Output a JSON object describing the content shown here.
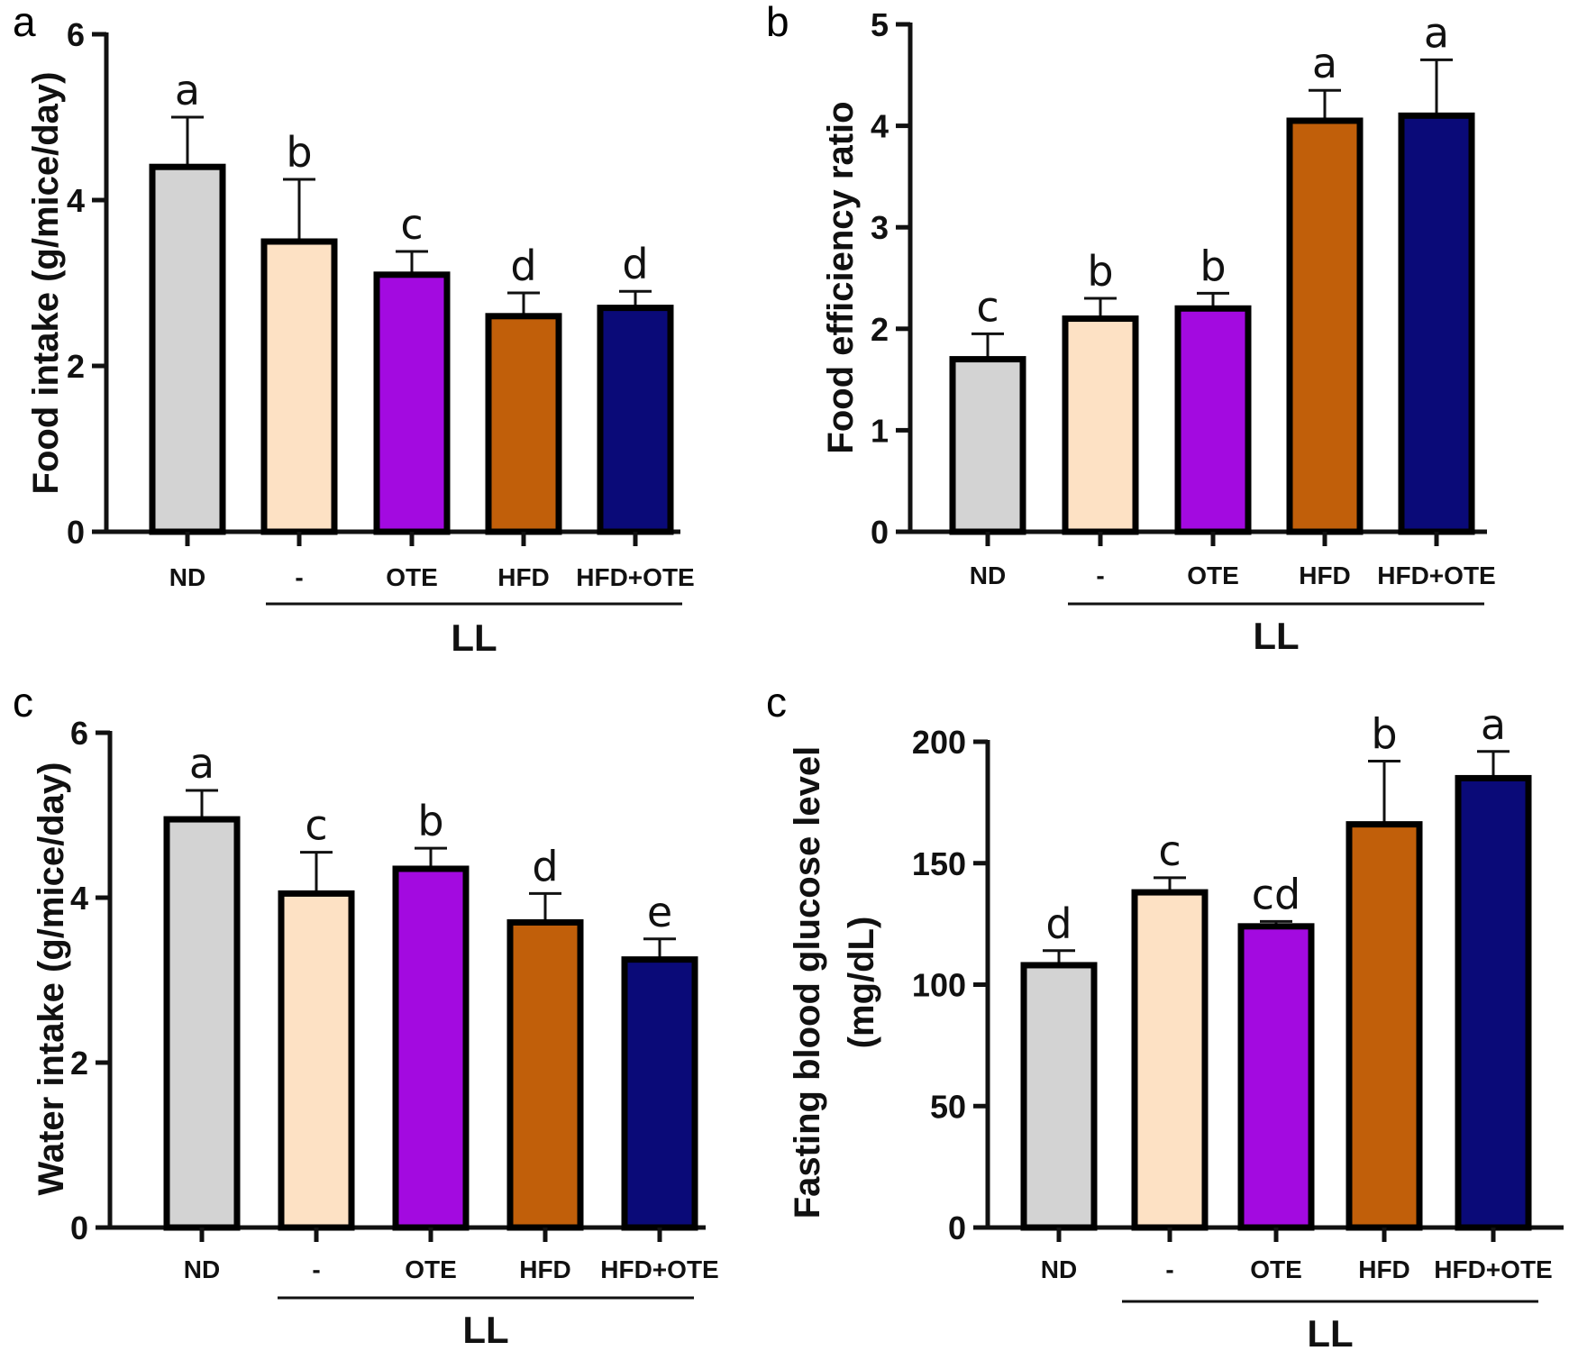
{
  "colors": {
    "ND": "#d3d3d3",
    "LL": "#fde1c4",
    "OTE": "#a30ae0",
    "HFD": "#c15f0a",
    "HFD+OTE": "#0a0a78"
  },
  "chart_data": [
    {
      "panel": "a",
      "type": "bar",
      "categories": [
        "ND",
        "-",
        "OTE",
        "HFD",
        "HFD+OTE"
      ],
      "values": [
        4.4,
        3.5,
        3.1,
        2.6,
        2.7
      ],
      "errors": [
        0.6,
        0.75,
        0.28,
        0.28,
        0.2
      ],
      "significance": [
        "a",
        "b",
        "c",
        "d",
        "d"
      ],
      "ylabel": "Food intake (g/mice/day)",
      "ylim": [
        0,
        6
      ],
      "yticks": [
        0,
        2,
        4,
        6
      ],
      "group_label": "LL"
    },
    {
      "panel": "b",
      "type": "bar",
      "categories": [
        "ND",
        "-",
        "OTE",
        "HFD",
        "HFD+OTE"
      ],
      "values": [
        1.7,
        2.1,
        2.2,
        4.05,
        4.1
      ],
      "errors": [
        0.25,
        0.2,
        0.15,
        0.3,
        0.55
      ],
      "significance": [
        "c",
        "b",
        "b",
        "a",
        "a"
      ],
      "ylabel": "Food efficiency ratio",
      "ylim": [
        0,
        5
      ],
      "yticks": [
        0,
        1,
        2,
        3,
        4,
        5
      ],
      "group_label": "LL"
    },
    {
      "panel": "c",
      "type": "bar",
      "categories": [
        "ND",
        "-",
        "OTE",
        "HFD",
        "HFD+OTE"
      ],
      "values": [
        4.95,
        4.05,
        4.35,
        3.7,
        3.25
      ],
      "errors": [
        0.35,
        0.5,
        0.25,
        0.35,
        0.25
      ],
      "significance": [
        "a",
        "c",
        "b",
        "d",
        "e"
      ],
      "ylabel": "Water intake (g/mice/day)",
      "ylim": [
        0,
        6
      ],
      "yticks": [
        0,
        2,
        4,
        6
      ],
      "group_label": "LL"
    },
    {
      "panel": "c",
      "type": "bar",
      "categories": [
        "ND",
        "-",
        "OTE",
        "HFD",
        "HFD+OTE"
      ],
      "values": [
        108,
        138,
        124,
        166,
        185
      ],
      "errors": [
        6,
        6,
        2,
        26,
        11
      ],
      "significance": [
        "d",
        "c",
        "cd",
        "b",
        "a"
      ],
      "ylabel": [
        "Fasting blood glucose level",
        "(mg/dL)"
      ],
      "ylim": [
        0,
        200
      ],
      "yticks": [
        0,
        50,
        100,
        150,
        200
      ],
      "group_label": "LL"
    }
  ]
}
